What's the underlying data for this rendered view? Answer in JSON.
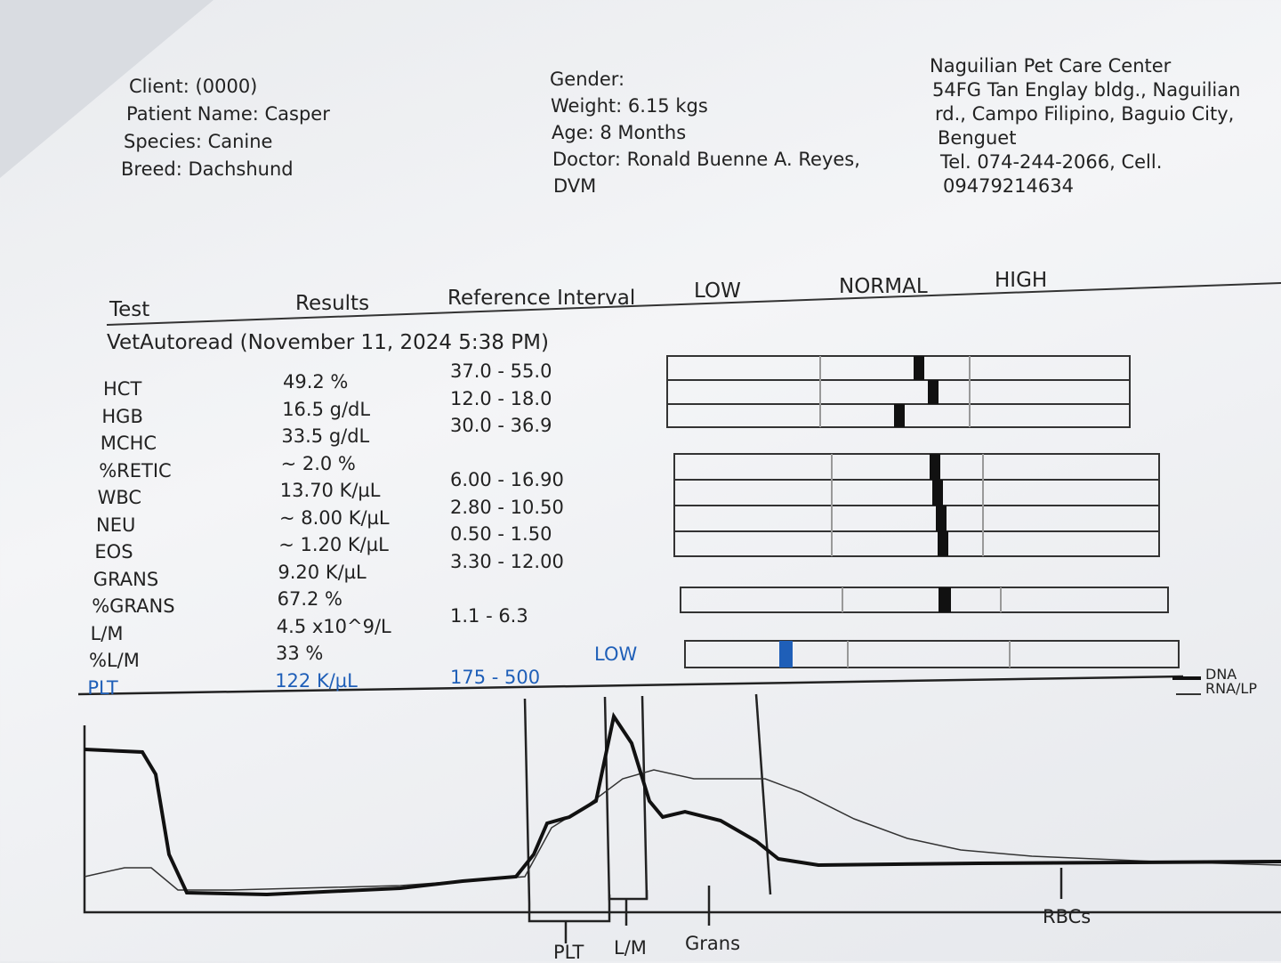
{
  "patient_info": [
    "Client:  (0000)",
    "Patient Name: Casper",
    "Species: Canine",
    "Breed: Dachshund"
  ],
  "visit_info": [
    "Gender:",
    "Weight: 6.15 kgs",
    "Age: 8 Months",
    "Doctor: Ronald Buenne A. Reyes,",
    "DVM"
  ],
  "clinic_info": [
    "Naguilian Pet Care Center",
    "54FG Tan Englay bldg., Naguilian",
    "rd., Campo Filipino, Baguio City,",
    "Benguet",
    "Tel. 074-244-2066,      Cell.",
    "09479214634"
  ],
  "table": {
    "headers": [
      "Test",
      "Results",
      "Reference Interval",
      "LOW",
      "NORMAL",
      "HIGH"
    ],
    "section_title": "VetAutoread (November 11, 2024 5:38 PM)",
    "rows": [
      {
        "test": "HCT",
        "result": "49.2 %",
        "reference": "37.0 - 55.0"
      },
      {
        "test": "HGB",
        "result": "16.5 g/dL",
        "reference": "12.0 - 18.0"
      },
      {
        "test": "MCHC",
        "result": "33.5 g/dL",
        "reference": "30.0 - 36.9"
      },
      {
        "test": "%RETIC",
        "result": "~ 2.0 %"
      },
      {
        "test": "WBC",
        "result": "13.70 K/µL",
        "reference": "6.00 - 16.90"
      },
      {
        "test": "NEU",
        "result": "~ 8.00 K/µL",
        "reference": "2.80 - 10.50"
      },
      {
        "test": "EOS",
        "result": "~ 1.20 K/µL",
        "reference": "0.50 - 1.50"
      },
      {
        "test": "GRANS",
        "result": "9.20 K/µL",
        "reference": "3.30 - 12.00"
      },
      {
        "test": "%GRANS",
        "result": "67.2 %"
      },
      {
        "test": "L/M",
        "result": "4.5 x10^9/L",
        "reference": "1.1 - 6.3"
      },
      {
        "test": "%L/M",
        "result": "33 %"
      },
      {
        "test": "PLT",
        "result": "122 K/µL",
        "reference": "175 - 500",
        "flag": "LOW"
      }
    ]
  },
  "histogram": {
    "legend": [
      "DNA",
      "RNA/LP"
    ],
    "axis_labels": [
      "PLT",
      "L/M",
      "Grans",
      "RBCs"
    ]
  }
}
